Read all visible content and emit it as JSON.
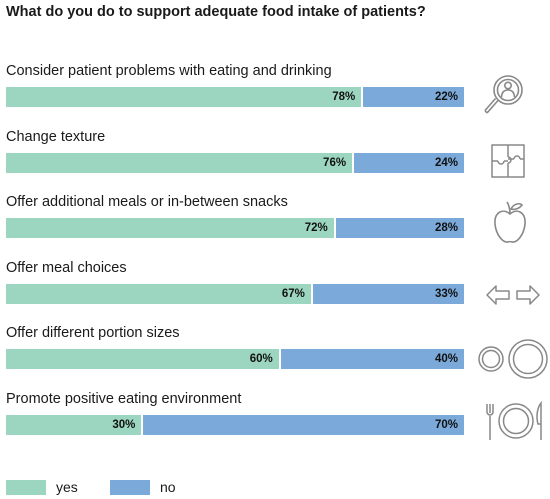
{
  "chart_data": {
    "type": "bar",
    "orientation": "horizontal",
    "stacked": true,
    "title": "What do you do to support adequate food intake of patients?",
    "categories": [
      "Consider patient problems with eating and drinking",
      "Change texture",
      "Offer additional meals or in-between snacks",
      "Offer meal choices",
      "Offer different portion sizes",
      "Promote positive eating environment"
    ],
    "series": [
      {
        "name": "yes",
        "color": "#9dd6c0",
        "values": [
          78,
          76,
          72,
          67,
          60,
          30
        ],
        "labels": [
          "78%",
          "76%",
          "72%",
          "67%",
          "60%",
          "30%"
        ]
      },
      {
        "name": "no",
        "color": "#7ba9d9",
        "values": [
          22,
          24,
          28,
          33,
          40,
          70
        ],
        "labels": [
          "22%",
          "24%",
          "28%",
          "33%",
          "40%",
          "70%"
        ]
      }
    ],
    "xlim": [
      0,
      100
    ],
    "legend": "bottom-left",
    "grid": false
  },
  "icons": [
    "magnifier-person-icon",
    "puzzle-icon",
    "apple-icon",
    "left-right-arrows-icon",
    "plates-icon",
    "place-setting-icon"
  ]
}
